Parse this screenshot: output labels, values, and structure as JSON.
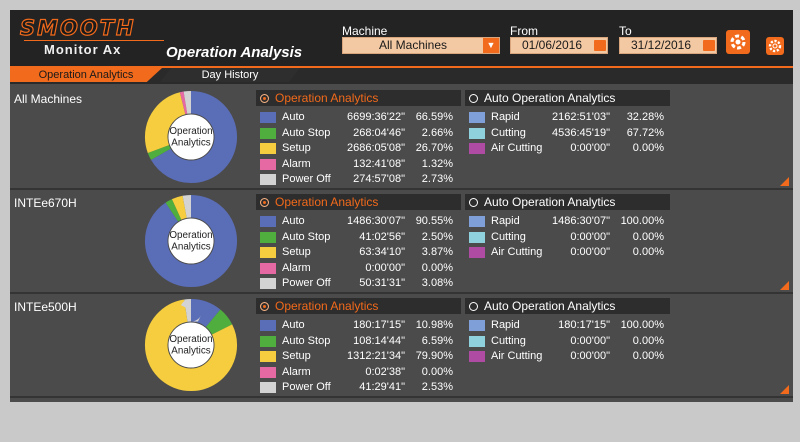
{
  "header": {
    "logo_title": "SMOOTH",
    "logo_subtitle": "Monitor Ax",
    "page_title": "Operation Analysis",
    "machine_label": "Machine",
    "machine_value": "All Machines",
    "from_label": "From",
    "from_value": "01/06/2016",
    "to_label": "To",
    "to_value": "31/12/2016"
  },
  "tabs": [
    {
      "label": "Operation Analytics",
      "active": true
    },
    {
      "label": "Day History",
      "active": false
    }
  ],
  "colors": {
    "accent": "#f26a1b",
    "auto": "#5a6db7",
    "auto_stop": "#4fae3e",
    "setup": "#f5cd3e",
    "alarm": "#e669a4",
    "power_off": "#d3d3d3",
    "rapid": "#7f9fd8",
    "cutting": "#8fd1dd",
    "air_cutting": "#b04ba3"
  },
  "sections": {
    "operation_title": "Operation Analytics",
    "auto_title": "Auto Operation Analytics",
    "donut_label_1": "Operation",
    "donut_label_2": "Analytics"
  },
  "machines": [
    {
      "name": "All Machines",
      "operation": [
        {
          "key": "auto",
          "label": "Auto",
          "time": "6699:36'22\"",
          "percent": "66.59%",
          "value": 66.59
        },
        {
          "key": "auto_stop",
          "label": "Auto Stop",
          "time": "268:04'46\"",
          "percent": "2.66%",
          "value": 2.66
        },
        {
          "key": "setup",
          "label": "Setup",
          "time": "2686:05'08\"",
          "percent": "26.70%",
          "value": 26.7
        },
        {
          "key": "alarm",
          "label": "Alarm",
          "time": "132:41'08\"",
          "percent": "1.32%",
          "value": 1.32
        },
        {
          "key": "power_off",
          "label": "Power Off",
          "time": "274:57'08\"",
          "percent": "2.73%",
          "value": 2.73
        }
      ],
      "auto_operation": [
        {
          "key": "rapid",
          "label": "Rapid",
          "time": "2162:51'03\"",
          "percent": "32.28%"
        },
        {
          "key": "cutting",
          "label": "Cutting",
          "time": "4536:45'19\"",
          "percent": "67.72%"
        },
        {
          "key": "air_cutting",
          "label": "Air Cutting",
          "time": "0:00'00\"",
          "percent": "0.00%"
        }
      ]
    },
    {
      "name": "INTEe670H",
      "operation": [
        {
          "key": "auto",
          "label": "Auto",
          "time": "1486:30'07\"",
          "percent": "90.55%",
          "value": 90.55
        },
        {
          "key": "auto_stop",
          "label": "Auto Stop",
          "time": "41:02'56\"",
          "percent": "2.50%",
          "value": 2.5
        },
        {
          "key": "setup",
          "label": "Setup",
          "time": "63:34'10\"",
          "percent": "3.87%",
          "value": 3.87
        },
        {
          "key": "alarm",
          "label": "Alarm",
          "time": "0:00'00\"",
          "percent": "0.00%",
          "value": 0
        },
        {
          "key": "power_off",
          "label": "Power Off",
          "time": "50:31'31\"",
          "percent": "3.08%",
          "value": 3.08
        }
      ],
      "auto_operation": [
        {
          "key": "rapid",
          "label": "Rapid",
          "time": "1486:30'07\"",
          "percent": "100.00%"
        },
        {
          "key": "cutting",
          "label": "Cutting",
          "time": "0:00'00\"",
          "percent": "0.00%"
        },
        {
          "key": "air_cutting",
          "label": "Air Cutting",
          "time": "0:00'00\"",
          "percent": "0.00%"
        }
      ]
    },
    {
      "name": "INTEe500H",
      "operation": [
        {
          "key": "auto",
          "label": "Auto",
          "time": "180:17'15\"",
          "percent": "10.98%",
          "value": 10.98
        },
        {
          "key": "auto_stop",
          "label": "Auto Stop",
          "time": "108:14'44\"",
          "percent": "6.59%",
          "value": 6.59
        },
        {
          "key": "setup",
          "label": "Setup",
          "time": "1312:21'34\"",
          "percent": "79.90%",
          "value": 79.9
        },
        {
          "key": "alarm",
          "label": "Alarm",
          "time": "0:02'38\"",
          "percent": "0.00%",
          "value": 0
        },
        {
          "key": "power_off",
          "label": "Power Off",
          "time": "41:29'41\"",
          "percent": "2.53%",
          "value": 2.53
        }
      ],
      "auto_operation": [
        {
          "key": "rapid",
          "label": "Rapid",
          "time": "180:17'15\"",
          "percent": "100.00%"
        },
        {
          "key": "cutting",
          "label": "Cutting",
          "time": "0:00'00\"",
          "percent": "0.00%"
        },
        {
          "key": "air_cutting",
          "label": "Air Cutting",
          "time": "0:00'00\"",
          "percent": "0.00%"
        }
      ]
    }
  ]
}
